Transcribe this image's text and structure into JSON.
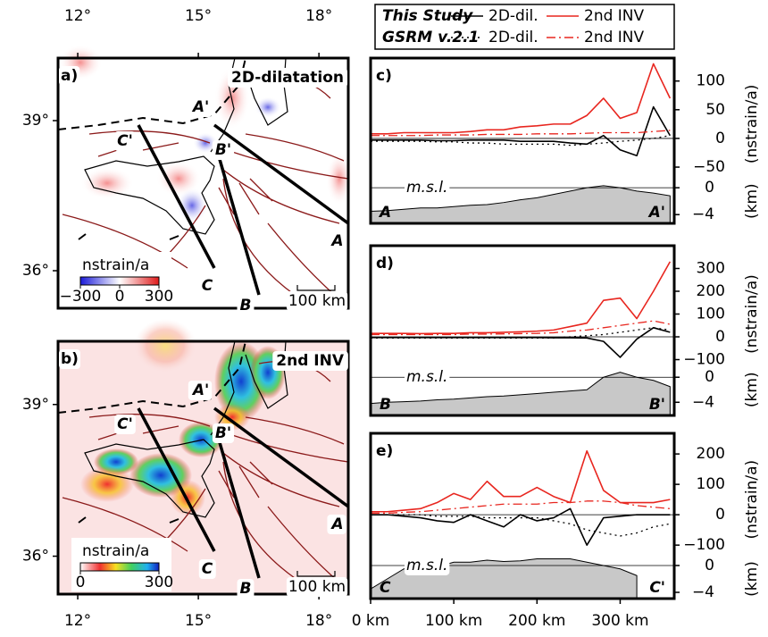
{
  "maps": [
    {
      "letter": "a)",
      "title": "2D-dilatation",
      "xlim": [
        11.51,
        18.73
      ],
      "ylim": [
        35.25,
        40.25
      ],
      "xticks": [
        {
          "value": 12,
          "label": "12°"
        },
        {
          "value": 15,
          "label": "15°"
        },
        {
          "value": 18,
          "label": "18°"
        }
      ],
      "yticks": [
        {
          "value": 36,
          "label": "36°"
        },
        {
          "value": 39,
          "label": "39°"
        }
      ],
      "colorbar": {
        "label": "nstrain/a",
        "ticks": [
          {
            "value": -300,
            "label": "−300"
          },
          {
            "value": 0,
            "label": "0"
          },
          {
            "value": 300,
            "label": "300"
          }
        ]
      },
      "scale": "100 km",
      "profiles": [
        {
          "start": "A",
          "end": "A'"
        },
        {
          "start": "B",
          "end": "B'"
        },
        {
          "start": "C",
          "end": "C'"
        }
      ]
    },
    {
      "letter": "b)",
      "title": "2nd INV",
      "xlim": [
        11.51,
        18.73
      ],
      "ylim": [
        35.25,
        40.25
      ],
      "xticks": [
        {
          "value": 12,
          "label": "12°"
        },
        {
          "value": 15,
          "label": "15°"
        },
        {
          "value": 18,
          "label": "18°"
        }
      ],
      "yticks": [
        {
          "value": 36,
          "label": "36°"
        },
        {
          "value": 39,
          "label": "39°"
        }
      ],
      "colorbar": {
        "label": "nstrain/a",
        "ticks": [
          {
            "value": 0,
            "label": "0"
          },
          {
            "value": 300,
            "label": "300"
          }
        ]
      },
      "scale": "100 km",
      "profiles": [
        {
          "start": "A",
          "end": "A'"
        },
        {
          "start": "B",
          "end": "B'"
        },
        {
          "start": "C",
          "end": "C'"
        }
      ]
    }
  ],
  "legend": {
    "rows": [
      "This Study",
      "GSRM v.2.1"
    ]
  },
  "chart_data": [
    {
      "type": "line",
      "letter": "c)",
      "start": "A",
      "end": "A'",
      "annotation": "m.s.l.",
      "ylabel": "(nstrain/a)",
      "y2label": "(km)",
      "x": [
        0,
        20,
        40,
        60,
        80,
        100,
        120,
        140,
        160,
        180,
        200,
        220,
        240,
        260,
        280,
        300,
        320,
        340,
        360
      ],
      "xlim": [
        0,
        365
      ],
      "ylim": [
        -148,
        140
      ],
      "yticks": [
        {
          "value": -50,
          "label": "−50"
        },
        0,
        50,
        100
      ],
      "y2lim": [
        -5.3,
        19.3
      ],
      "y2ticks": [
        {
          "value": -4,
          "label": "−4"
        },
        0
      ],
      "series": [
        {
          "name": "2D-dil.",
          "color": "#000000",
          "dash": "solid",
          "values": [
            -3,
            -3,
            -3,
            -3,
            -4,
            -4,
            -3,
            -3,
            -3,
            -5,
            -5,
            -5,
            -8,
            -10,
            5,
            -20,
            -30,
            55,
            5
          ]
        },
        {
          "name": "2nd INV",
          "color": "#e8261f",
          "dash": "solid",
          "values": [
            8,
            8,
            10,
            10,
            10,
            10,
            12,
            15,
            15,
            20,
            22,
            25,
            25,
            40,
            70,
            35,
            45,
            130,
            70
          ]
        },
        {
          "name": "2D-dil.",
          "color": "#000000",
          "dash": "dotted",
          "values": [
            -5,
            -5,
            -5,
            -5,
            -6,
            -6,
            -8,
            -8,
            -10,
            -10,
            -10,
            -10,
            -12,
            -10,
            -8,
            -5,
            -3,
            0,
            5
          ]
        },
        {
          "name": "2nd INV",
          "color": "#e8261f",
          "dash": "dashdot",
          "values": [
            5,
            5,
            5,
            5,
            6,
            6,
            6,
            7,
            7,
            7,
            8,
            8,
            8,
            9,
            10,
            10,
            10,
            12,
            14
          ]
        }
      ],
      "topography": {
        "color": "#c8c8c8",
        "axis": "y2",
        "values": [
          -3.5,
          -3.4,
          -3.2,
          -3,
          -3,
          -2.8,
          -2.6,
          -2.5,
          -2.2,
          -1.8,
          -1.5,
          -1,
          -0.5,
          0,
          0.3,
          0,
          -0.5,
          -0.8,
          -1.2
        ]
      }
    },
    {
      "type": "line",
      "letter": "d)",
      "start": "B",
      "end": "B'",
      "annotation": "m.s.l.",
      "ylabel": "(nstrain/a)",
      "y2label": "(km)",
      "x": [
        0,
        20,
        40,
        60,
        80,
        100,
        120,
        140,
        160,
        180,
        200,
        220,
        240,
        260,
        280,
        300,
        320,
        340,
        360
      ],
      "xlim": [
        0,
        365
      ],
      "ylim": [
        -345,
        400
      ],
      "yticks": [
        {
          "value": -100,
          "label": "−100"
        },
        0,
        100,
        200,
        300
      ],
      "y2lim": [
        -6.1,
        21
      ],
      "y2ticks": [
        {
          "value": -4,
          "label": "−4"
        },
        0
      ],
      "series": [
        {
          "name": "2D-dil.",
          "color": "#000000",
          "dash": "solid",
          "values": [
            -3,
            -3,
            -3,
            -3,
            -3,
            -3,
            -3,
            -3,
            -3,
            -3,
            -3,
            -4,
            -4,
            -5,
            -20,
            -90,
            -10,
            40,
            20
          ]
        },
        {
          "name": "2nd INV",
          "color": "#e8261f",
          "dash": "solid",
          "values": [
            15,
            15,
            15,
            14,
            15,
            15,
            18,
            18,
            20,
            22,
            25,
            30,
            45,
            60,
            160,
            170,
            80,
            200,
            330
          ]
        },
        {
          "name": "2D-dil.",
          "color": "#000000",
          "dash": "dotted",
          "values": [
            -5,
            -5,
            -5,
            -5,
            -5,
            -5,
            -5,
            -5,
            -5,
            -5,
            -5,
            -5,
            0,
            5,
            10,
            20,
            30,
            40,
            30
          ]
        },
        {
          "name": "2nd INV",
          "color": "#e8261f",
          "dash": "dashdot",
          "values": [
            10,
            10,
            10,
            10,
            10,
            10,
            12,
            12,
            13,
            14,
            15,
            18,
            25,
            30,
            40,
            50,
            60,
            70,
            55
          ]
        }
      ],
      "topography": {
        "color": "#c8c8c8",
        "axis": "y2",
        "values": [
          -4.2,
          -4,
          -3.9,
          -3.8,
          -3.6,
          -3.5,
          -3.3,
          -3.1,
          -3,
          -2.8,
          -2.6,
          -2.4,
          -2.2,
          -2,
          0,
          0.8,
          0,
          -0.5,
          -1.5
        ]
      }
    },
    {
      "type": "line",
      "letter": "e)",
      "start": "C",
      "end": "C'",
      "annotation": "m.s.l.",
      "ylabel": "(nstrain/a)",
      "y2label": "(km)",
      "x": [
        0,
        20,
        40,
        60,
        80,
        100,
        120,
        140,
        160,
        180,
        200,
        220,
        240,
        260,
        280,
        300,
        320,
        340,
        360
      ],
      "xlim": [
        0,
        365
      ],
      "xticks": [
        {
          "value": 0,
          "label": "0 km"
        },
        {
          "value": 100,
          "label": "100 km"
        },
        {
          "value": 200,
          "label": "200 km"
        },
        {
          "value": 300,
          "label": "300 km"
        }
      ],
      "ylim": [
        -276,
        268
      ],
      "yticks": [
        {
          "value": -100,
          "label": "−100"
        },
        0,
        100,
        200
      ],
      "y2lim": [
        -4.93,
        19.7
      ],
      "y2ticks": [
        {
          "value": -4,
          "label": "−4"
        },
        0
      ],
      "series": [
        {
          "name": "2D-dil.",
          "color": "#000000",
          "dash": "solid",
          "values": [
            0,
            0,
            -5,
            -10,
            -20,
            -25,
            0,
            -20,
            -40,
            0,
            -20,
            -10,
            20,
            -100,
            -10,
            -5,
            0,
            0,
            0
          ]
        },
        {
          "name": "2nd INV",
          "color": "#e8261f",
          "dash": "solid",
          "values": [
            10,
            10,
            15,
            20,
            40,
            70,
            50,
            110,
            60,
            60,
            90,
            60,
            40,
            210,
            80,
            40,
            40,
            40,
            50
          ]
        },
        {
          "name": "2D-dil.",
          "color": "#000000",
          "dash": "dotted",
          "values": [
            0,
            0,
            0,
            0,
            -5,
            -5,
            -5,
            -10,
            -10,
            -10,
            -10,
            -20,
            -30,
            -50,
            -60,
            -70,
            -60,
            -40,
            -30
          ]
        },
        {
          "name": "2nd INV",
          "color": "#e8261f",
          "dash": "dashdot",
          "values": [
            5,
            5,
            8,
            10,
            15,
            20,
            25,
            30,
            35,
            35,
            35,
            40,
            40,
            45,
            45,
            40,
            30,
            25,
            20
          ]
        }
      ],
      "topography": {
        "color": "#c8c8c8",
        "axis": "y2",
        "values": [
          -3.5,
          -2,
          -0.5,
          -0.3,
          -0.2,
          0.5,
          0.5,
          0.8,
          0.6,
          0.7,
          1,
          1,
          1,
          0.5,
          0,
          -0.5,
          -1.5,
          null,
          null
        ]
      }
    }
  ]
}
